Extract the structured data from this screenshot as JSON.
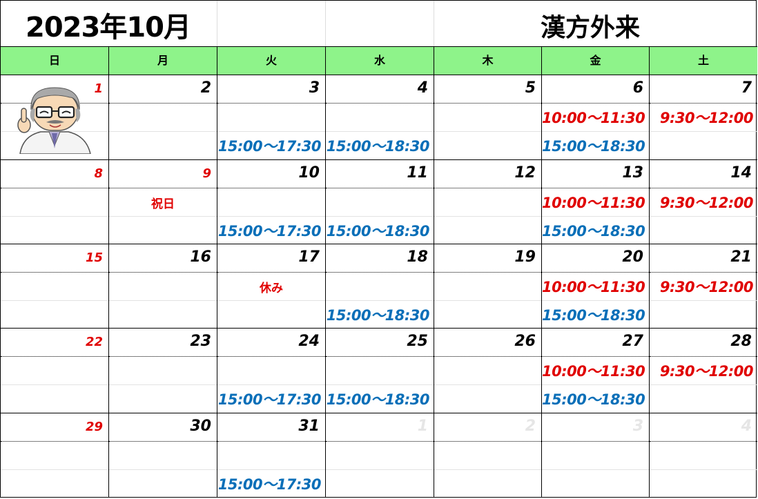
{
  "header": {
    "month_title": "2023年10月",
    "clinic_title": "漢方外来"
  },
  "weekdays": [
    "日",
    "月",
    "火",
    "水",
    "木",
    "金",
    "土"
  ],
  "colors": {
    "header_bg": "#8ef38a",
    "sunday_holiday": "#e00000",
    "morning_slot": "#e00000",
    "afternoon_slot": "#0a6fb8"
  },
  "icons": [
    "doctor-illustration"
  ],
  "weeks": [
    [
      {
        "day": "1",
        "red": true,
        "doctor": true
      },
      {
        "day": "2"
      },
      {
        "day": "3",
        "pm": "15:00～17:30"
      },
      {
        "day": "4",
        "pm": "15:00～18:30"
      },
      {
        "day": "5"
      },
      {
        "day": "6",
        "am": "10:00～11:30",
        "pm": "15:00～18:30"
      },
      {
        "day": "7",
        "am": "9:30～12:00"
      }
    ],
    [
      {
        "day": "8",
        "red": true
      },
      {
        "day": "9",
        "red": true,
        "note": "祝日"
      },
      {
        "day": "10",
        "pm": "15:00～17:30"
      },
      {
        "day": "11",
        "pm": "15:00～18:30"
      },
      {
        "day": "12"
      },
      {
        "day": "13",
        "am": "10:00～11:30",
        "pm": "15:00～18:30"
      },
      {
        "day": "14",
        "am": "9:30～12:00"
      }
    ],
    [
      {
        "day": "15",
        "red": true
      },
      {
        "day": "16"
      },
      {
        "day": "17",
        "note": "休み"
      },
      {
        "day": "18",
        "pm": "15:00～18:30"
      },
      {
        "day": "19"
      },
      {
        "day": "20",
        "am": "10:00～11:30",
        "pm": "15:00～18:30"
      },
      {
        "day": "21",
        "am": "9:30～12:00"
      }
    ],
    [
      {
        "day": "22",
        "red": true
      },
      {
        "day": "23"
      },
      {
        "day": "24",
        "pm": "15:00～17:30"
      },
      {
        "day": "25",
        "pm": "15:00～18:30"
      },
      {
        "day": "26"
      },
      {
        "day": "27",
        "am": "10:00～11:30",
        "pm": "15:00～18:30"
      },
      {
        "day": "28",
        "am": "9:30～12:00"
      }
    ],
    [
      {
        "day": "29",
        "red": true
      },
      {
        "day": "30"
      },
      {
        "day": "31",
        "pm": "15:00～17:30"
      },
      {
        "day": "1",
        "faded": true
      },
      {
        "day": "2",
        "faded": true
      },
      {
        "day": "3",
        "faded": true
      },
      {
        "day": "4",
        "faded": true
      }
    ]
  ]
}
